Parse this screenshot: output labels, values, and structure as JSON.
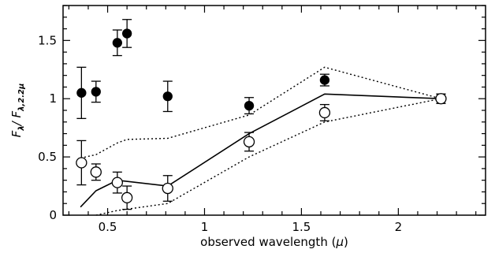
{
  "chart_data": {
    "type": "scatter",
    "xlabel_prefix": "observed wavelength (",
    "xlabel_mu": "μ",
    "xlabel_suffix": ")",
    "ylabel_main": "F",
    "ylabel_sub1": "λ",
    "ylabel_slash": "/ F",
    "ylabel_sub2": "λ,2.2μ",
    "xlim": [
      0.27,
      2.45
    ],
    "ylim": [
      0,
      1.8
    ],
    "x_ticks": [
      0.5,
      1,
      1.5,
      2
    ],
    "x_tick_labels": [
      "0.5",
      "1",
      "1.5",
      "2"
    ],
    "y_ticks": [
      0,
      0.5,
      1,
      1.5
    ],
    "y_tick_labels": [
      "0",
      "0.5",
      "1",
      "1.5"
    ],
    "grid": false,
    "series": [
      {
        "marker": "filled-circle",
        "points": [
          {
            "x": 0.365,
            "y": 1.05,
            "err": 0.22
          },
          {
            "x": 0.44,
            "y": 1.06,
            "err": 0.09
          },
          {
            "x": 0.55,
            "y": 1.48,
            "err": 0.11
          },
          {
            "x": 0.6,
            "y": 1.56,
            "err": 0.12
          },
          {
            "x": 0.81,
            "y": 1.02,
            "err": 0.13
          },
          {
            "x": 1.23,
            "y": 0.94,
            "err": 0.07
          },
          {
            "x": 1.62,
            "y": 1.16,
            "err": 0.05
          },
          {
            "x": 2.22,
            "y": 1.0,
            "err": 0.04
          }
        ]
      },
      {
        "marker": "open-circle",
        "points": [
          {
            "x": 0.365,
            "y": 0.45,
            "err": 0.19
          },
          {
            "x": 0.44,
            "y": 0.37,
            "err": 0.07
          },
          {
            "x": 0.55,
            "y": 0.28,
            "err": 0.09
          },
          {
            "x": 0.6,
            "y": 0.15,
            "err": 0.1
          },
          {
            "x": 0.81,
            "y": 0.23,
            "err": 0.11
          },
          {
            "x": 1.23,
            "y": 0.63,
            "err": 0.08
          },
          {
            "x": 1.62,
            "y": 0.88,
            "err": 0.07
          },
          {
            "x": 2.22,
            "y": 1.0,
            "err": 0.04
          }
        ]
      }
    ],
    "lines": [
      {
        "style": "solid",
        "x": [
          0.36,
          0.44,
          0.55,
          0.81,
          1.23,
          1.62,
          2.22
        ],
        "y": [
          0.07,
          0.21,
          0.3,
          0.25,
          0.7,
          1.04,
          1.0
        ]
      },
      {
        "style": "dotted",
        "x": [
          0.36,
          0.44,
          0.55,
          0.6,
          0.81,
          1.23,
          1.62,
          2.22
        ],
        "y": [
          0.49,
          0.52,
          0.62,
          0.65,
          0.66,
          0.86,
          1.27,
          1.0
        ]
      },
      {
        "style": "dotted",
        "x": [
          0.44,
          0.55,
          0.81,
          1.23,
          1.62,
          2.22
        ],
        "y": [
          0.0,
          0.04,
          0.1,
          0.5,
          0.8,
          1.0
        ]
      }
    ]
  }
}
